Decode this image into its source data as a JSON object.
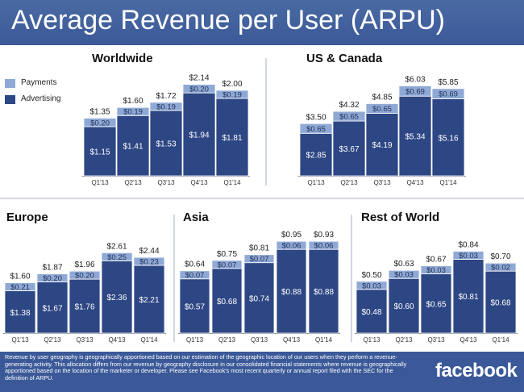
{
  "page": {
    "title": "Average Revenue per User (ARPU)",
    "footnote": "Revenue by user geography is geographically apportioned based on our estimation of the geographic location of our users when they perform a revenue-generating activity. This allocation differs from our revenue by geography disclosure in our consolidated financial statements where revenue is geographically apportioned based on the location of the marketer or developer. Please see Facebook's most recent quarterly or annual report filed with the SEC for the definition of ARPU.",
    "logo": "facebook"
  },
  "legend": {
    "payments": "Payments",
    "advertising": "Advertising"
  },
  "colors": {
    "header": "#3b5998",
    "advertising": "#2d4684",
    "payments": "#8fa9d6",
    "divider": "#a5aec3"
  },
  "chart_data": [
    {
      "type": "bar",
      "stacked": true,
      "title": "Worldwide",
      "categories": [
        "Q1'13",
        "Q2'13",
        "Q3'13",
        "Q4'13",
        "Q1'14"
      ],
      "series": [
        {
          "name": "Advertising",
          "values": [
            1.15,
            1.41,
            1.53,
            1.94,
            1.81
          ],
          "labels": [
            "$1.15",
            "$1.41",
            "$1.53",
            "$1.94",
            "$1.81"
          ]
        },
        {
          "name": "Payments",
          "values": [
            0.2,
            0.19,
            0.19,
            0.2,
            0.19
          ],
          "labels": [
            "$0.20",
            "$0.19",
            "$0.19",
            "$0.20",
            "$0.19"
          ]
        }
      ],
      "totals": [
        1.35,
        1.6,
        1.72,
        2.14,
        2.0
      ],
      "total_labels": [
        "$1.35",
        "$1.60",
        "$1.72",
        "$2.14",
        "$2.00"
      ]
    },
    {
      "type": "bar",
      "stacked": true,
      "title": "US & Canada",
      "categories": [
        "Q1'13",
        "Q2'13",
        "Q3'13",
        "Q4'13",
        "Q1'14"
      ],
      "series": [
        {
          "name": "Advertising",
          "values": [
            2.85,
            3.67,
            4.19,
            5.34,
            5.16
          ],
          "labels": [
            "$2.85",
            "$3.67",
            "$4.19",
            "$5.34",
            "$5.16"
          ]
        },
        {
          "name": "Payments",
          "values": [
            0.65,
            0.65,
            0.65,
            0.69,
            0.69
          ],
          "labels": [
            "$0.65",
            "$0.65",
            "$0.65",
            "$0.69",
            "$0.69"
          ]
        }
      ],
      "totals": [
        3.5,
        4.32,
        4.85,
        6.03,
        5.85
      ],
      "total_labels": [
        "$3.50",
        "$4.32",
        "$4.85",
        "$6.03",
        "$5.85"
      ]
    },
    {
      "type": "bar",
      "stacked": true,
      "title": "Europe",
      "categories": [
        "Q1'13",
        "Q2'13",
        "Q3'13",
        "Q4'13",
        "Q1'14"
      ],
      "series": [
        {
          "name": "Advertising",
          "values": [
            1.38,
            1.67,
            1.76,
            2.36,
            2.21
          ],
          "labels": [
            "$1.38",
            "$1.67",
            "$1.76",
            "$2.36",
            "$2.21"
          ]
        },
        {
          "name": "Payments",
          "values": [
            0.21,
            0.2,
            0.2,
            0.25,
            0.23
          ],
          "labels": [
            "$0.21",
            "$0.20",
            "$0.20",
            "$0.25",
            "$0.23"
          ]
        }
      ],
      "totals": [
        1.6,
        1.87,
        1.96,
        2.61,
        2.44
      ],
      "total_labels": [
        "$1.60",
        "$1.87",
        "$1.96",
        "$2.61",
        "$2.44"
      ]
    },
    {
      "type": "bar",
      "stacked": true,
      "title": "Asia",
      "categories": [
        "Q1'13",
        "Q2'13",
        "Q3'13",
        "Q4'13",
        "Q1'14"
      ],
      "series": [
        {
          "name": "Advertising",
          "values": [
            0.57,
            0.68,
            0.74,
            0.88,
            0.88
          ],
          "labels": [
            "$0.57",
            "$0.68",
            "$0.74",
            "$0.88",
            "$0.88"
          ]
        },
        {
          "name": "Payments",
          "values": [
            0.07,
            0.07,
            0.07,
            0.06,
            0.06
          ],
          "labels": [
            "$0.07",
            "$0.07",
            "$0.07",
            "$0.06",
            "$0.06"
          ]
        }
      ],
      "totals": [
        0.64,
        0.75,
        0.81,
        0.95,
        0.93
      ],
      "total_labels": [
        "$0.64",
        "$0.75",
        "$0.81",
        "$0.95",
        "$0.93"
      ]
    },
    {
      "type": "bar",
      "stacked": true,
      "title": "Rest of World",
      "categories": [
        "Q1'13",
        "Q2'13",
        "Q3'13",
        "Q4'13",
        "Q1'14"
      ],
      "series": [
        {
          "name": "Advertising",
          "values": [
            0.48,
            0.6,
            0.65,
            0.81,
            0.68
          ],
          "labels": [
            "$0.48",
            "$0.60",
            "$0.65",
            "$0.81",
            "$0.68"
          ]
        },
        {
          "name": "Payments",
          "values": [
            0.03,
            0.03,
            0.03,
            0.03,
            0.02
          ],
          "labels": [
            "$0.03",
            "$0.03",
            "$0.03",
            "$0.03",
            "$0.02"
          ]
        }
      ],
      "totals": [
        0.5,
        0.63,
        0.67,
        0.84,
        0.7
      ],
      "total_labels": [
        "$0.50",
        "$0.63",
        "$0.67",
        "$0.84",
        "$0.70"
      ]
    }
  ]
}
